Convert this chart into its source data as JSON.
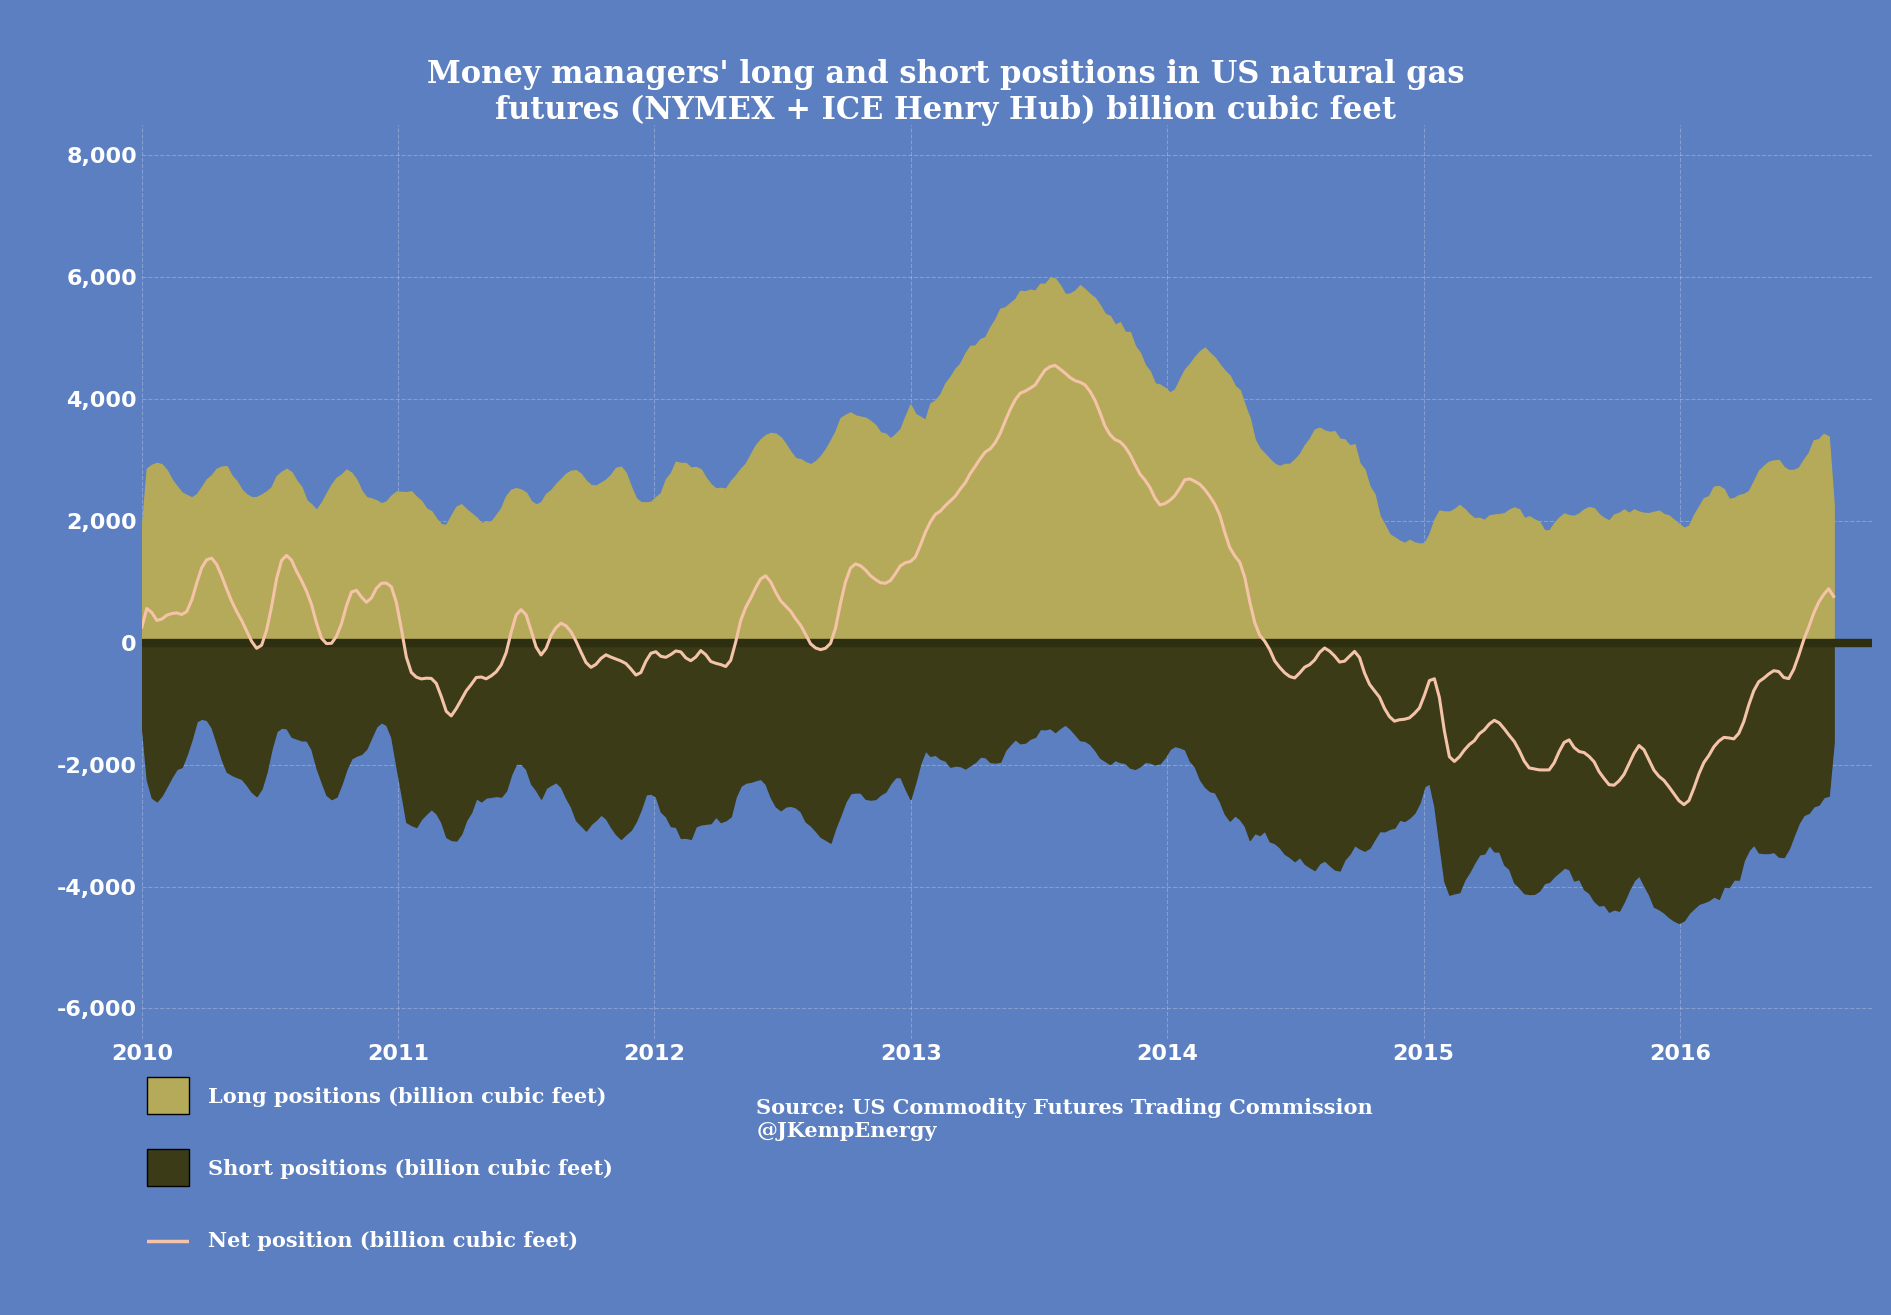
{
  "title": "Money managers' long and short positions in US natural gas\nfutures (NYMEX + ICE Henry Hub) billion cubic feet",
  "background_color": "#5b7fc0",
  "long_color": "#b5aa5a",
  "short_color": "#3b3b18",
  "net_color": "#f5c4a8",
  "zero_band_color": "#2e2e10",
  "ylim": [
    -6500,
    8500
  ],
  "yticks": [
    -6000,
    -4000,
    -2000,
    0,
    2000,
    4000,
    6000,
    8000
  ],
  "legend_long": "Long positions (billion cubic feet)",
  "legend_short": "Short positions (billion cubic feet)",
  "legend_net": "Net position (billion cubic feet)",
  "source_text": "Source: US Commodity Futures Trading Commission\n@JKempEnergy",
  "title_color": "#ffffff",
  "tick_color": "#ffffff",
  "grid_color": "#ffffff",
  "title_fontsize": 22,
  "tick_fontsize": 16,
  "legend_fontsize": 15
}
